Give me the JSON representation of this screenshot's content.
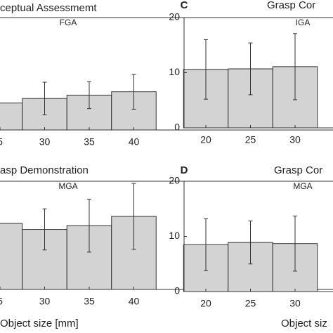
{
  "chart_data": [
    {
      "type": "bar",
      "title": "ceptual Assessmemt",
      "subtitle": "FGA",
      "color": "#d3d3d3",
      "categories": [
        "5",
        "30",
        "35",
        "40"
      ],
      "values": [
        4.8,
        5.6,
        6.2,
        6.8
      ],
      "errors": [
        null,
        2.9,
        2.4,
        3.1
      ],
      "ylim": [
        0,
        20
      ]
    },
    {
      "type": "bar",
      "panel_label": "C",
      "title": "Grasp Cor",
      "subtitle": "IGA",
      "color": "#d3d3d3",
      "categories": [
        "20",
        "25",
        "30"
      ],
      "values": [
        10.6,
        10.7,
        11.1
      ],
      "errors": [
        5.4,
        4.7,
        6.0
      ],
      "ylim": [
        0,
        20
      ],
      "yticks": [
        0,
        10,
        20
      ]
    },
    {
      "type": "bar",
      "title": "asp Demonstration",
      "subtitle": "MGA",
      "color": "#d3d3d3",
      "xlabel": "Object size [mm]",
      "categories": [
        "5",
        "30",
        "35",
        "40"
      ],
      "values": [
        12.2,
        11.1,
        11.8,
        13.5
      ],
      "errors": [
        null,
        3.8,
        4.9,
        6.1
      ],
      "ylim": [
        0,
        20
      ]
    },
    {
      "type": "bar",
      "panel_label": "D",
      "title": "Grasp Cor",
      "subtitle": "MGA",
      "color": "#d3d3d3",
      "xlabel": "Object siz",
      "categories": [
        "20",
        "25",
        "30"
      ],
      "values": [
        8.5,
        8.9,
        8.7
      ],
      "errors": [
        4.7,
        3.9,
        5.0
      ],
      "ylim": [
        0,
        20
      ],
      "yticks": [
        0,
        10,
        20
      ]
    }
  ]
}
